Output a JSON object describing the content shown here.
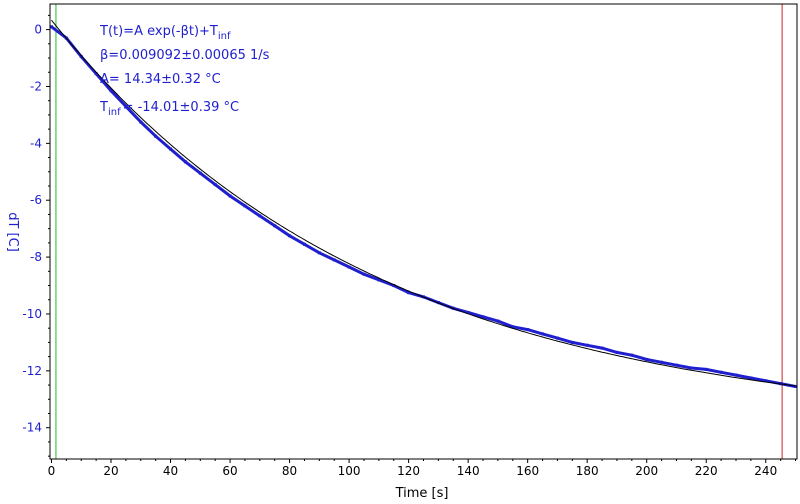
{
  "chart_data": {
    "type": "scatter",
    "xlabel": "Time [s]",
    "ylabel": "dT [C]",
    "xlim": [
      -0.5,
      250.5
    ],
    "ylim": [
      -15.1,
      0.9
    ],
    "x_ticks": [
      0,
      20,
      40,
      60,
      80,
      100,
      120,
      140,
      160,
      180,
      200,
      220,
      240
    ],
    "y_ticks": [
      0,
      -2,
      -4,
      -6,
      -8,
      -10,
      -12,
      -14
    ],
    "grid": false,
    "fit": {
      "equation_main": "T(t)=A exp(-βt)+T",
      "equation_sub": "inf",
      "beta_text": "β=0.009092±0.00065 1/s",
      "A_text": "A= 14.34±0.32 °C",
      "Tinf_main": "T",
      "Tinf_sub": "inf",
      "Tinf_rest": "= -14.01±0.39 °C",
      "A": 14.34,
      "beta": 0.009092,
      "Tinf": -14.01
    },
    "markers": {
      "start_x": 1.5,
      "end_x": 245.5
    },
    "colors": {
      "data": "#1f1fcf",
      "fit": "#000000",
      "axis_text": "#1f1fcf",
      "start_line": "#22bb22",
      "end_line": "#cc2222"
    },
    "series": [
      {
        "x": [
          0,
          5,
          10,
          15,
          20,
          25,
          30,
          35,
          40,
          45,
          50,
          55,
          60,
          65,
          70,
          75,
          80,
          85,
          90,
          95,
          100,
          105,
          110,
          115,
          120,
          125,
          130,
          135,
          140,
          145,
          150,
          155,
          160,
          165,
          170,
          175,
          180,
          185,
          190,
          195,
          200,
          205,
          210,
          215,
          220,
          225,
          230,
          235,
          240,
          245,
          250
        ],
        "values": [
          0.1,
          -0.3,
          -0.95,
          -1.55,
          -2.15,
          -2.7,
          -3.25,
          -3.75,
          -4.2,
          -4.65,
          -5.05,
          -5.45,
          -5.85,
          -6.2,
          -6.55,
          -6.9,
          -7.25,
          -7.55,
          -7.85,
          -8.1,
          -8.35,
          -8.6,
          -8.8,
          -9.0,
          -9.25,
          -9.4,
          -9.6,
          -9.8,
          -9.95,
          -10.1,
          -10.25,
          -10.45,
          -10.55,
          -10.7,
          -10.85,
          -11.0,
          -11.1,
          -11.2,
          -11.35,
          -11.45,
          -11.6,
          -11.7,
          -11.8,
          -11.9,
          -11.95,
          -12.05,
          -12.15,
          -12.25,
          -12.35,
          -12.45,
          -12.55
        ]
      }
    ]
  }
}
